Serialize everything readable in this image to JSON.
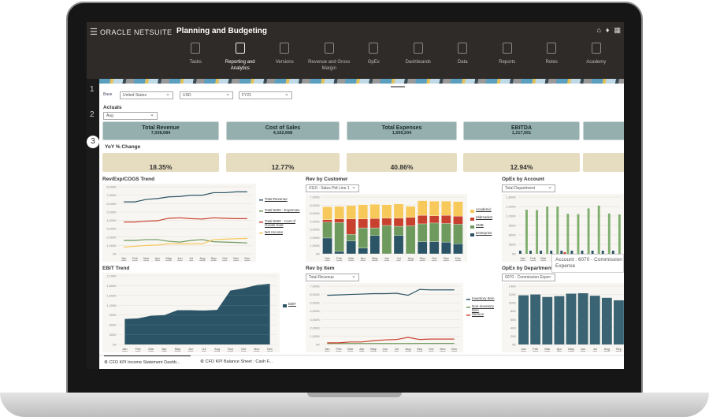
{
  "header": {
    "menu_icon": "hamburger-icon",
    "logo": "ORACLE NETSUITE",
    "app_title": "Planning and Budgeting",
    "right_icons": [
      "home-icon",
      "user-icon",
      "grid-icon"
    ]
  },
  "nav": [
    {
      "label": "Tasks",
      "icon": "clipboard-icon"
    },
    {
      "label": "Reporting and Analytics",
      "icon": "report-icon",
      "active": true
    },
    {
      "label": "Versions",
      "icon": "versions-icon"
    },
    {
      "label": "Revenue and Gross Margin",
      "icon": "revenue-icon"
    },
    {
      "label": "OpEx",
      "icon": "opex-icon"
    },
    {
      "label": "Dashboards",
      "icon": "dashboard-icon"
    },
    {
      "label": "Data",
      "icon": "data-icon"
    },
    {
      "label": "Reports",
      "icon": "reports-icon"
    },
    {
      "label": "Roles",
      "icon": "roles-icon"
    },
    {
      "label": "Academy",
      "icon": "academy-icon"
    }
  ],
  "steps": [
    "1",
    "2",
    "3"
  ],
  "filters": {
    "base_label": "Base",
    "country": "United States",
    "currency": "USD",
    "year": "FY22"
  },
  "actuals": {
    "label": "Actuals",
    "period": "Aug"
  },
  "kpis": [
    {
      "title": "Total Revenue",
      "value": "7,038,684"
    },
    {
      "title": "Cost of Sales",
      "value": "4,162,668"
    },
    {
      "title": "Total Expenses",
      "value": "1,659,204"
    },
    {
      "title": "EBITDA",
      "value": "1,217,561"
    }
  ],
  "yoy": {
    "label": "YoY % Change",
    "values": [
      "18.35%",
      "12.77%",
      "40.86%",
      "12.94%"
    ]
  },
  "colors": {
    "kpi_card": "#95aeae",
    "yoy_card": "#e6dcbf",
    "dark_teal": "#2b5566",
    "green": "#6f9a5e",
    "red": "#c8412f",
    "yellow": "#f7c85a"
  },
  "tooltip": {
    "line1": "Account : 6070 - Commission",
    "line2": "Expense"
  },
  "tabs": [
    {
      "label": "CFO KPI Income Statement Dashb...",
      "active": true
    },
    {
      "label": "CFO KPI Balance Sheet : Cash F..."
    }
  ],
  "chart_data": [
    {
      "id": "c1",
      "title": "Rev/Exp/COGS Trend",
      "type": "line",
      "ylim": [
        0,
        8000
      ],
      "yticks": [
        "0K",
        "1,000K",
        "2,000K",
        "3,000K",
        "4,000K",
        "5,000K",
        "6,000K",
        "7,000K",
        "8,000K"
      ],
      "categories": [
        "Jan",
        "Feb",
        "Mar",
        "Apr",
        "May",
        "Jun",
        "Jul",
        "Aug",
        "Sep",
        "Oct",
        "Nov",
        "Dec"
      ],
      "series": [
        {
          "name": "Total Revenue",
          "color": "#2b5566",
          "values": [
            6200,
            6200,
            6500,
            6600,
            6800,
            6850,
            7000,
            7000,
            7300,
            7300,
            7400,
            7400
          ]
        },
        {
          "name": "Total 6000 - Expenses",
          "color": "#6f9a5e",
          "values": [
            1600,
            1600,
            1700,
            1700,
            1500,
            1400,
            1600,
            1700,
            1450,
            1400,
            1350,
            1300
          ]
        },
        {
          "name": "Total 5000 - Cost of Goods Sold",
          "color": "#c8412f",
          "values": [
            3800,
            3800,
            3900,
            3950,
            4250,
            4300,
            4200,
            4150,
            4300,
            4250,
            4200,
            4200
          ]
        },
        {
          "name": "Net Income",
          "color": "#f7c85a",
          "values": [
            800,
            900,
            1000,
            1050,
            1200,
            1200,
            1200,
            1200,
            1700,
            1750,
            1800,
            1850
          ]
        }
      ]
    },
    {
      "id": "c2",
      "title": "Rev by Customer",
      "filter": "4110 - Sales Pdt Line 1",
      "type": "stacked-bar",
      "ylim": [
        0,
        7000
      ],
      "yticks": [
        "0K",
        "1,000K",
        "2,000K",
        "3,000K",
        "4,000K",
        "5,000K",
        "6,000K",
        "7,000K"
      ],
      "categories": [
        "Jan",
        "Feb",
        "Mar",
        "Apr",
        "May",
        "Jun",
        "Jul",
        "Aug",
        "Sep",
        "Oct",
        "Nov",
        "Dec"
      ],
      "series": [
        {
          "name": "Enterprise",
          "color": "#2b5566",
          "values": [
            1950,
            300,
            1600,
            700,
            2250,
            0,
            2250,
            0,
            1500,
            1500,
            1450,
            1250
          ]
        },
        {
          "name": "SMB",
          "color": "#6f9a5e",
          "values": [
            1950,
            3550,
            800,
            2500,
            950,
            3500,
            1150,
            3450,
            2200,
            2300,
            2300,
            2400
          ]
        },
        {
          "name": "Midmarket",
          "color": "#c8412f",
          "values": [
            300,
            450,
            1900,
            1100,
            1150,
            900,
            1000,
            1050,
            1050,
            900,
            1000,
            1000
          ]
        },
        {
          "name": "Academic",
          "color": "#f7c85a",
          "values": [
            1600,
            1550,
            1650,
            1750,
            1750,
            1650,
            1750,
            1350,
            1800,
            1800,
            1750,
            1800
          ]
        }
      ]
    },
    {
      "id": "c3",
      "title": "OpEx by Account",
      "filter": "Total Department",
      "type": "bar",
      "ylim": [
        0,
        1800
      ],
      "yticks": [
        "0K",
        "300K",
        "600K",
        "900K",
        "1,200K",
        "1,500K",
        "1,800K"
      ],
      "categories": [
        "Jan",
        "Feb",
        "Mar",
        "Apr",
        "May",
        "Jun",
        "Jul",
        "Aug",
        "Sep",
        "Oct"
      ],
      "series": [
        {
          "color": "#2b5566",
          "values": [
            100,
            100,
            100,
            100,
            100,
            100,
            100,
            100,
            100,
            100
          ]
        },
        {
          "color": "#c8412f",
          "values": [
            0,
            0,
            0,
            0,
            50,
            0,
            0,
            0,
            0,
            0
          ]
        },
        {
          "color": "#7fae6e",
          "values": [
            1400,
            1390,
            1500,
            1500,
            1270,
            1260,
            1440,
            1530,
            1280,
            1250
          ]
        }
      ]
    },
    {
      "id": "c4",
      "title": "EBIT Trend",
      "type": "area",
      "ylim": [
        0,
        2100
      ],
      "yticks": [
        "0K",
        "300K",
        "600K",
        "900K",
        "1,200K",
        "1,500K",
        "1,800K",
        "2,100K"
      ],
      "categories": [
        "Jan",
        "Feb",
        "Mar",
        "Apr",
        "May",
        "Jun",
        "Jul",
        "Aug",
        "Sep",
        "Oct",
        "Nov",
        "Dec"
      ],
      "series": [
        {
          "name": "EBIT",
          "color": "#2b5566",
          "values": [
            780,
            800,
            880,
            900,
            1050,
            1050,
            1040,
            1060,
            1650,
            1720,
            1820,
            1860
          ]
        }
      ]
    },
    {
      "id": "c5",
      "title": "Rev by Item",
      "filter": "Total Revenue",
      "type": "line",
      "ylim": [
        0,
        7000
      ],
      "yticks": [
        "0K",
        "1,000K",
        "2,000K",
        "3,000K",
        "4,000K",
        "5,000K",
        "6,000K",
        "7,000K"
      ],
      "categories": [
        "Jan",
        "Feb",
        "Mar",
        "Apr",
        "May",
        "Jun",
        "Jul",
        "Aug",
        "Sep",
        "Oct",
        "Nov",
        "Dec"
      ],
      "series": [
        {
          "name": "Inventory Item",
          "color": "#2b5566",
          "values": [
            5900,
            5950,
            6000,
            6050,
            6100,
            6100,
            6150,
            5900,
            6600,
            6550,
            6550,
            6550
          ]
        },
        {
          "name": "Non-inventory Item",
          "color": "#6f9a5e",
          "values": [
            120,
            120,
            120,
            120,
            120,
            120,
            120,
            120,
            130,
            130,
            130,
            130
          ]
        },
        {
          "name": "Service",
          "color": "#c8412f",
          "values": [
            200,
            200,
            300,
            300,
            450,
            550,
            600,
            850,
            600,
            650,
            650,
            650
          ]
        }
      ]
    },
    {
      "id": "c6",
      "title": "OpEx by Department",
      "filter": "6070 - Commission Expe",
      "type": "bar",
      "ylim": [
        0,
        140
      ],
      "yticks": [
        "0K",
        "20K",
        "40K",
        "60K",
        "80K",
        "100K",
        "120K",
        "140K"
      ],
      "categories": [
        "Jan",
        "Feb",
        "Mar",
        "Apr",
        "May",
        "Jun",
        "Jul",
        "Aug",
        "Sep"
      ],
      "series": [
        {
          "color": "#3a6473",
          "values": [
            118,
            120,
            114,
            116,
            122,
            123,
            117,
            112,
            106
          ]
        }
      ]
    }
  ]
}
